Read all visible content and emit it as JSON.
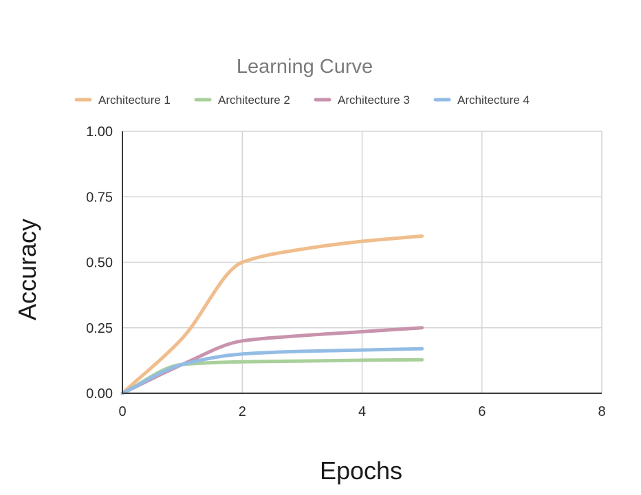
{
  "chart_data": {
    "type": "line",
    "title": "Learning Curve",
    "xlabel": "Epochs",
    "ylabel": "Accuracy",
    "xlim": [
      0,
      8
    ],
    "ylim": [
      0,
      1
    ],
    "x_ticks": [
      "0",
      "2",
      "4",
      "6",
      "8"
    ],
    "y_ticks": [
      "0.00",
      "0.25",
      "0.50",
      "0.75",
      "1.00"
    ],
    "x_tick_values": [
      0,
      2,
      4,
      6,
      8
    ],
    "y_tick_values": [
      0,
      0.25,
      0.5,
      0.75,
      1.0
    ],
    "grid": true,
    "legend_position": "top",
    "series": [
      {
        "name": "Architecture 1",
        "color": "#f0bd8c",
        "points": [
          [
            0,
            0
          ],
          [
            1,
            0.21
          ],
          [
            2,
            0.5
          ],
          [
            3,
            0.55
          ],
          [
            4,
            0.58
          ],
          [
            5,
            0.6
          ]
        ]
      },
      {
        "name": "Architecture 2",
        "color": "#a9d09a",
        "points": [
          [
            0,
            0
          ],
          [
            1,
            0.11
          ],
          [
            2,
            0.12
          ],
          [
            3,
            0.123
          ],
          [
            4,
            0.126
          ],
          [
            5,
            0.128
          ]
        ]
      },
      {
        "name": "Architecture 3",
        "color": "#c893ad",
        "points": [
          [
            0,
            0
          ],
          [
            1,
            0.11
          ],
          [
            2,
            0.2
          ],
          [
            3,
            0.22
          ],
          [
            4,
            0.235
          ],
          [
            5,
            0.25
          ]
        ]
      },
      {
        "name": "Architecture 4",
        "color": "#93bce5",
        "points": [
          [
            0,
            0
          ],
          [
            1,
            0.11
          ],
          [
            2,
            0.15
          ],
          [
            3,
            0.16
          ],
          [
            4,
            0.165
          ],
          [
            5,
            0.17
          ]
        ]
      }
    ]
  }
}
